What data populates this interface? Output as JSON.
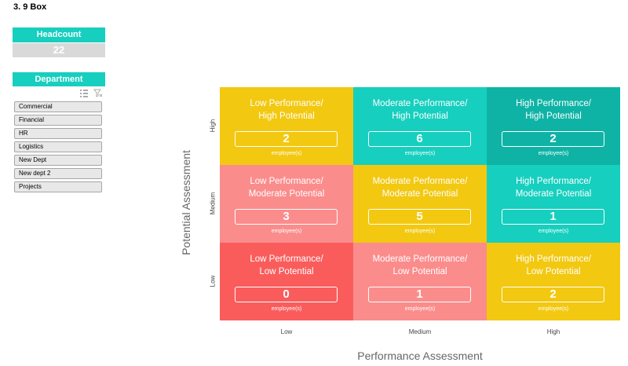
{
  "sheet": {
    "title": "3. 9 Box"
  },
  "headcount": {
    "label": "Headcount",
    "value": "22"
  },
  "department": {
    "label": "Department",
    "items": [
      "Commercial",
      "Financial",
      "HR",
      "Logistics",
      "New Dept",
      "New dept 2",
      "Projects"
    ]
  },
  "slicer_icons": [
    "multi-select-icon",
    "clear-filter-icon"
  ],
  "matrix": {
    "count_caption": "employee(s)",
    "rows": [
      {
        "y_label": "High",
        "cells": [
          {
            "line1": "Low Performance/",
            "line2": "High Potential",
            "count": "2",
            "color": "#f2c811"
          },
          {
            "line1": "Moderate Performance/",
            "line2": "High Potential",
            "count": "6",
            "color": "#16cfbf"
          },
          {
            "line1": "High Performance/",
            "line2": "High Potential",
            "count": "2",
            "color": "#0fb3a5"
          }
        ]
      },
      {
        "y_label": "Medium",
        "cells": [
          {
            "line1": "Low Performance/",
            "line2": "Moderate Potential",
            "count": "3",
            "color": "#fb8c8c"
          },
          {
            "line1": "Moderate Performance/",
            "line2": "Moderate Potential",
            "count": "5",
            "color": "#f2c811"
          },
          {
            "line1": "High Performance/",
            "line2": "Moderate Potential",
            "count": "1",
            "color": "#16cfbf"
          }
        ]
      },
      {
        "y_label": "Low",
        "cells": [
          {
            "line1": "Low Performance/",
            "line2": "Low Potential",
            "count": "0",
            "color": "#fa5c5c"
          },
          {
            "line1": "Moderate Performance/",
            "line2": "Low Potential",
            "count": "1",
            "color": "#fb8c8c"
          },
          {
            "line1": "High Performance/",
            "line2": "Low Potential",
            "count": "2",
            "color": "#f2c811"
          }
        ]
      }
    ],
    "x_labels": [
      "Low",
      "Medium",
      "High"
    ],
    "x_title": "Performance Assessment",
    "y_title": "Potential Assessment"
  }
}
